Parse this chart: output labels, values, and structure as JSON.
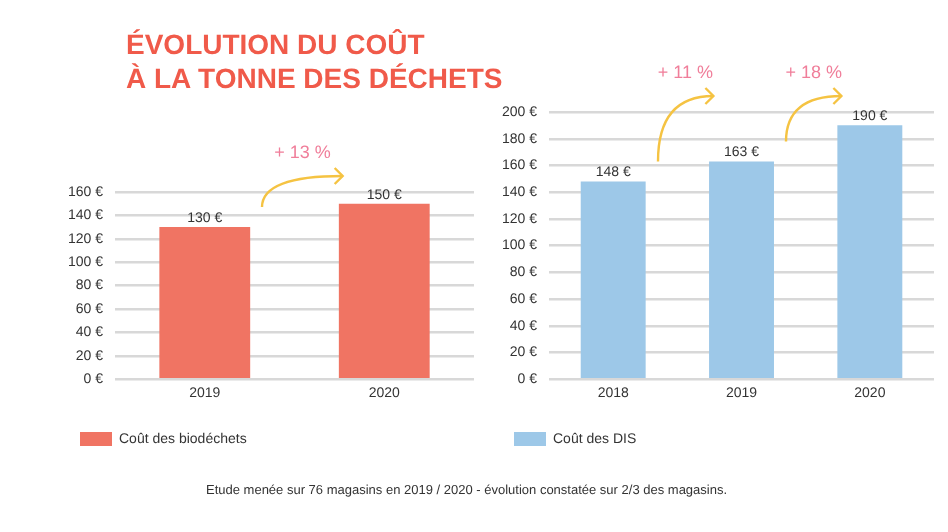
{
  "chart_data": [
    {
      "type": "bar",
      "title": "ÉVOLUTION DU COÛT\nÀ LA TONNE DES DÉCHETS",
      "categories": [
        "2019",
        "2020"
      ],
      "series": [
        {
          "name": "Coût des biodéchets",
          "color": "#f07463",
          "values": [
            130,
            150
          ],
          "value_labels": [
            "130 €",
            "150 €"
          ]
        }
      ],
      "ylim": [
        0,
        160
      ],
      "yticks": [
        {
          "value": 0,
          "label": "0 €"
        },
        {
          "value": 20,
          "label": "20 €"
        },
        {
          "value": 40,
          "label": "40 €"
        },
        {
          "value": 60,
          "label": "60 €"
        },
        {
          "value": 80,
          "label": "80 €"
        },
        {
          "value": 100,
          "label": "100 €"
        },
        {
          "value": 120,
          "label": "120 €"
        },
        {
          "value": 140,
          "label": "140 €"
        },
        {
          "value": 160,
          "label": "160 €"
        }
      ],
      "grid": "y",
      "legend": "bottom",
      "annotations": [
        "+ 13 %"
      ]
    },
    {
      "type": "bar",
      "categories": [
        "2018",
        "2019",
        "2020"
      ],
      "series": [
        {
          "name": "Coût des DIS",
          "color": "#9dc8e8",
          "values": [
            148,
            163,
            190
          ],
          "value_labels": [
            "148 €",
            "163 €",
            "190 €"
          ]
        }
      ],
      "ylim": [
        0,
        200
      ],
      "yticks": [
        {
          "value": 0,
          "label": "0 €"
        },
        {
          "value": 20,
          "label": "20 €"
        },
        {
          "value": 40,
          "label": "40 €"
        },
        {
          "value": 60,
          "label": "60 €"
        },
        {
          "value": 80,
          "label": "80 €"
        },
        {
          "value": 100,
          "label": "100 €"
        },
        {
          "value": 120,
          "label": "120 €"
        },
        {
          "value": 140,
          "label": "140 €"
        },
        {
          "value": 160,
          "label": "160 €"
        },
        {
          "value": 180,
          "label": "180 €"
        },
        {
          "value": 200,
          "label": "200 €"
        }
      ],
      "grid": "y",
      "legend": "bottom",
      "annotations": [
        "+ 11 %",
        "+ 18 %",
        "Etude menée sur 76 magasins en 2019 / 2020 - évolution constatée sur 2/3 des magasins."
      ]
    }
  ]
}
